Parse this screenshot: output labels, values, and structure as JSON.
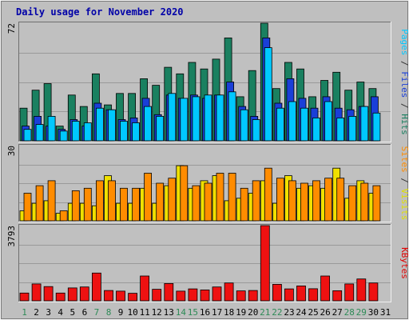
{
  "chart_data": {
    "type": "bar",
    "title": "Daily usage for November 2020",
    "days": [
      "1",
      "2",
      "3",
      "4",
      "5",
      "6",
      "7",
      "8",
      "9",
      "10",
      "11",
      "12",
      "13",
      "14",
      "15",
      "16",
      "17",
      "18",
      "19",
      "20",
      "21",
      "22",
      "23",
      "24",
      "25",
      "26",
      "27",
      "28",
      "29",
      "30",
      "31"
    ],
    "weekend_days": [
      "1",
      "7",
      "8",
      "14",
      "15",
      "21",
      "22",
      "28",
      "29"
    ],
    "panels": [
      {
        "ymax_label": "72",
        "ymax": 72,
        "label_parts": [
          {
            "text": "Pages",
            "color": "#00c8ff"
          },
          {
            "text": " / ",
            "color": "#333333"
          },
          {
            "text": "Files",
            "color": "#1a3fd8"
          },
          {
            "text": " / ",
            "color": "#333333"
          },
          {
            "text": "Hits",
            "color": "#1a8060"
          }
        ],
        "series": [
          {
            "name": "Hits",
            "color": "#1a8060",
            "values": [
              20,
              31,
              35,
              9,
              28,
              21,
              41,
              22,
              29,
              29,
              38,
              34,
              45,
              41,
              48,
              44,
              50,
              63,
              27,
              43,
              72,
              32,
              48,
              44,
              27,
              37,
              42,
              31,
              36,
              32,
              0
            ]
          },
          {
            "name": "Files",
            "color": "#1a3fd8",
            "values": [
              9,
              15,
              9,
              7,
              13,
              9,
              23,
              19,
              13,
              14,
              26,
              16,
              28,
              26,
              28,
              26,
              28,
              36,
              21,
              15,
              63,
              23,
              38,
              26,
              20,
              27,
              20,
              19,
              21,
              27,
              0
            ]
          },
          {
            "name": "Pages",
            "color": "#00c8ff",
            "values": [
              7,
              10,
              15,
              6,
              12,
              11,
              20,
              19,
              12,
              11,
              21,
              15,
              29,
              26,
              27,
              28,
              28,
              30,
              19,
              13,
              57,
              20,
              24,
              20,
              14,
              24,
              14,
              15,
              21,
              17,
              0
            ]
          }
        ]
      },
      {
        "ymax_label": "30",
        "ymax": 30,
        "label_parts": [
          {
            "text": "Sites",
            "color": "#ff8c00"
          },
          {
            "text": " / ",
            "color": "#333333"
          },
          {
            "text": "Visits",
            "color": "#e0e000"
          }
        ],
        "series": [
          {
            "name": "Visits",
            "color": "#f0e000",
            "values": [
              4,
              7,
              8,
              3,
              7,
              7,
              6,
              18,
              7,
              7,
              13,
              7,
              14,
              22,
              13,
              16,
              18,
              8,
              9,
              11,
              16,
              7,
              18,
              13,
              14,
              13,
              21,
              9,
              16,
              11,
              0
            ]
          },
          {
            "name": "Sites",
            "color": "#ff8c00",
            "values": [
              11,
              14,
              16,
              4,
              12,
              13,
              16,
              16,
              13,
              13,
              19,
              15,
              17,
              22,
              14,
              15,
              19,
              19,
              13,
              16,
              21,
              17,
              16,
              15,
              16,
              17,
              17,
              14,
              15,
              14,
              0
            ]
          }
        ]
      },
      {
        "ymax_label": "3793",
        "ymax": 3793,
        "label_parts": [
          {
            "text": "KBytes",
            "color": "#e00000"
          }
        ],
        "series": [
          {
            "name": "KBytes",
            "color": "#ee1111",
            "values": [
              390,
              850,
              720,
              390,
              650,
              700,
              1400,
              520,
              490,
              380,
              1250,
              580,
              870,
              490,
              600,
              550,
              700,
              900,
              500,
              520,
              3793,
              830,
              600,
              750,
              610,
              1250,
              510,
              850,
              1100,
              900,
              0
            ]
          }
        ]
      }
    ]
  }
}
